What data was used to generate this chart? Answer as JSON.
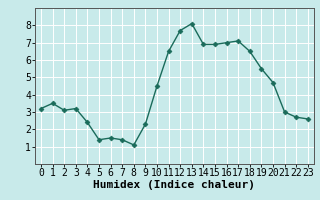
{
  "x": [
    0,
    1,
    2,
    3,
    4,
    5,
    6,
    7,
    8,
    9,
    10,
    11,
    12,
    13,
    14,
    15,
    16,
    17,
    18,
    19,
    20,
    21,
    22,
    23
  ],
  "y": [
    3.2,
    3.5,
    3.1,
    3.2,
    2.4,
    1.4,
    1.5,
    1.4,
    1.1,
    2.3,
    4.5,
    6.5,
    7.7,
    8.1,
    6.9,
    6.9,
    7.0,
    7.1,
    6.5,
    5.5,
    4.7,
    3.0,
    2.7,
    2.6
  ],
  "xlabel": "Humidex (Indice chaleur)",
  "ylim": [
    0,
    9
  ],
  "xlim": [
    -0.5,
    23.5
  ],
  "yticks": [
    1,
    2,
    3,
    4,
    5,
    6,
    7,
    8
  ],
  "xticks": [
    0,
    1,
    2,
    3,
    4,
    5,
    6,
    7,
    8,
    9,
    10,
    11,
    12,
    13,
    14,
    15,
    16,
    17,
    18,
    19,
    20,
    21,
    22,
    23
  ],
  "line_color": "#1a6b5a",
  "marker": "D",
  "marker_size": 2.5,
  "bg_color": "#c8eaea",
  "grid_major_color": "#ffffff",
  "grid_minor_color": "#dfc8c8",
  "axes_bg": "#c8eaea",
  "xlabel_fontsize": 8,
  "tick_fontsize": 7,
  "linewidth": 1.0
}
